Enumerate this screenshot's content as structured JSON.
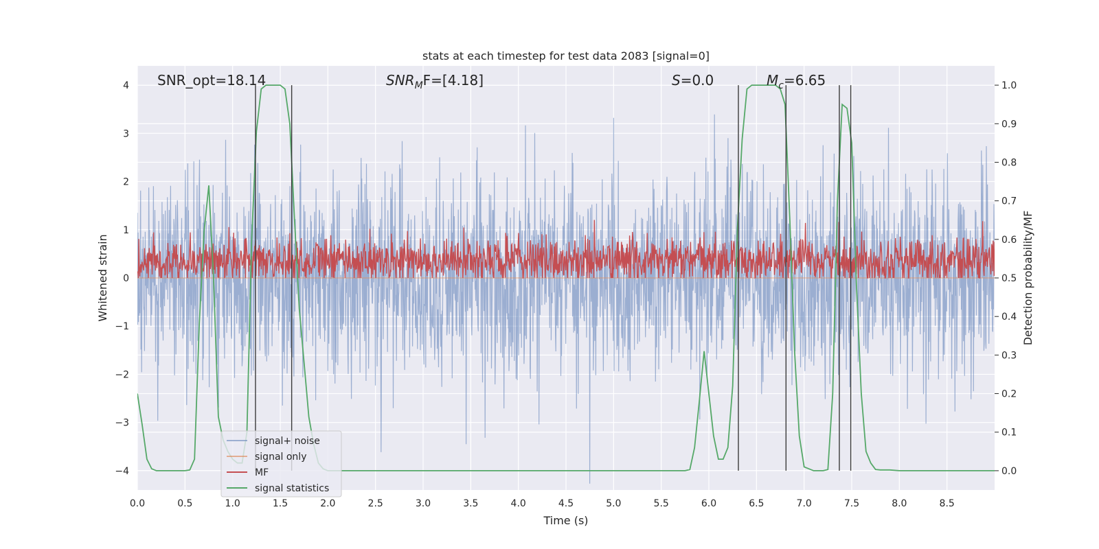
{
  "chart_data": {
    "type": "line",
    "title": "stats at each timestep for test data 2083 [signal=0]",
    "xlabel": "Time (s)",
    "ylabel": "Whitened strain",
    "ylabel_right": "Detection probability/MF",
    "xlim": [
      0,
      9.0
    ],
    "ylim": [
      -4.4,
      4.4
    ],
    "ylim_right": [
      -0.05,
      1.05
    ],
    "x_ticks": [
      "0.0",
      "0.5",
      "1.0",
      "1.5",
      "2.0",
      "2.5",
      "3.0",
      "3.5",
      "4.0",
      "4.5",
      "5.0",
      "5.5",
      "6.0",
      "6.5",
      "7.0",
      "7.5",
      "8.0",
      "8.5"
    ],
    "y_ticks_left": [
      "−4",
      "−3",
      "−2",
      "−1",
      "0",
      "1",
      "2",
      "3",
      "4"
    ],
    "y_ticks_right": [
      "0.0",
      "0.1",
      "0.2",
      "0.3",
      "0.4",
      "0.5",
      "0.6",
      "0.7",
      "0.8",
      "0.9",
      "1.0"
    ],
    "grid": true,
    "legend_position": "lower-left",
    "annotations": {
      "snr_opt": "SNR_opt=18.14",
      "snr_mf_base": "SNR",
      "snr_mf_sub": "M",
      "snr_mf_tail": "F=[4.18]",
      "s_var": "S",
      "s_val": "=0.0",
      "mc_base": "M",
      "mc_sub": "c",
      "mc_val": "=6.65"
    },
    "vertical_lines_x": [
      1.24,
      1.62,
      6.31,
      6.81,
      7.37,
      7.49
    ],
    "series": [
      {
        "name": "signal+ noise",
        "color": "#4c72b0",
        "axis": "left",
        "noise_sigma": 1.0
      },
      {
        "name": "signal only",
        "color": "#dd8452",
        "axis": "left",
        "values_flat": 0
      },
      {
        "name": "MF",
        "color": "#c44e52",
        "axis": "right",
        "noise_mean": 0.545,
        "noise_sigma": 0.03
      },
      {
        "name": "signal statistics",
        "color": "#55a868",
        "axis": "right",
        "x": [
          0.0,
          0.05,
          0.1,
          0.15,
          0.2,
          0.3,
          0.4,
          0.5,
          0.55,
          0.6,
          0.65,
          0.7,
          0.75,
          0.8,
          0.85,
          0.9,
          0.95,
          1.0,
          1.05,
          1.1,
          1.15,
          1.2,
          1.25,
          1.3,
          1.35,
          1.4,
          1.5,
          1.55,
          1.6,
          1.65,
          1.7,
          1.75,
          1.8,
          1.85,
          1.9,
          1.95,
          2.0,
          2.1,
          2.5,
          3.0,
          3.5,
          4.0,
          4.5,
          5.0,
          5.5,
          5.75,
          5.8,
          5.85,
          5.9,
          5.95,
          6.0,
          6.05,
          6.1,
          6.15,
          6.2,
          6.25,
          6.3,
          6.35,
          6.4,
          6.45,
          6.5,
          6.6,
          6.7,
          6.75,
          6.8,
          6.85,
          6.9,
          6.95,
          7.0,
          7.1,
          7.2,
          7.25,
          7.3,
          7.35,
          7.4,
          7.45,
          7.5,
          7.55,
          7.6,
          7.65,
          7.7,
          7.75,
          7.8,
          7.9,
          8.0,
          8.5,
          9.0
        ],
        "values": [
          0.2,
          0.12,
          0.03,
          0.005,
          0.0,
          0.0,
          0.0,
          0.0,
          0.002,
          0.03,
          0.38,
          0.62,
          0.74,
          0.5,
          0.14,
          0.08,
          0.05,
          0.03,
          0.02,
          0.02,
          0.1,
          0.6,
          0.88,
          0.99,
          1.0,
          1.0,
          1.0,
          0.99,
          0.9,
          0.65,
          0.42,
          0.28,
          0.14,
          0.07,
          0.02,
          0.005,
          0.0,
          0.0,
          0.0,
          0.0,
          0.0,
          0.0,
          0.0,
          0.0,
          0.0,
          0.0,
          0.003,
          0.06,
          0.18,
          0.31,
          0.2,
          0.09,
          0.03,
          0.03,
          0.06,
          0.22,
          0.63,
          0.86,
          0.99,
          1.0,
          1.0,
          1.0,
          1.0,
          0.99,
          0.95,
          0.65,
          0.31,
          0.09,
          0.01,
          0.0,
          0.0,
          0.003,
          0.2,
          0.7,
          0.95,
          0.94,
          0.85,
          0.48,
          0.2,
          0.05,
          0.02,
          0.003,
          0.002,
          0.002,
          0.0,
          0.0,
          0.0
        ]
      }
    ]
  }
}
